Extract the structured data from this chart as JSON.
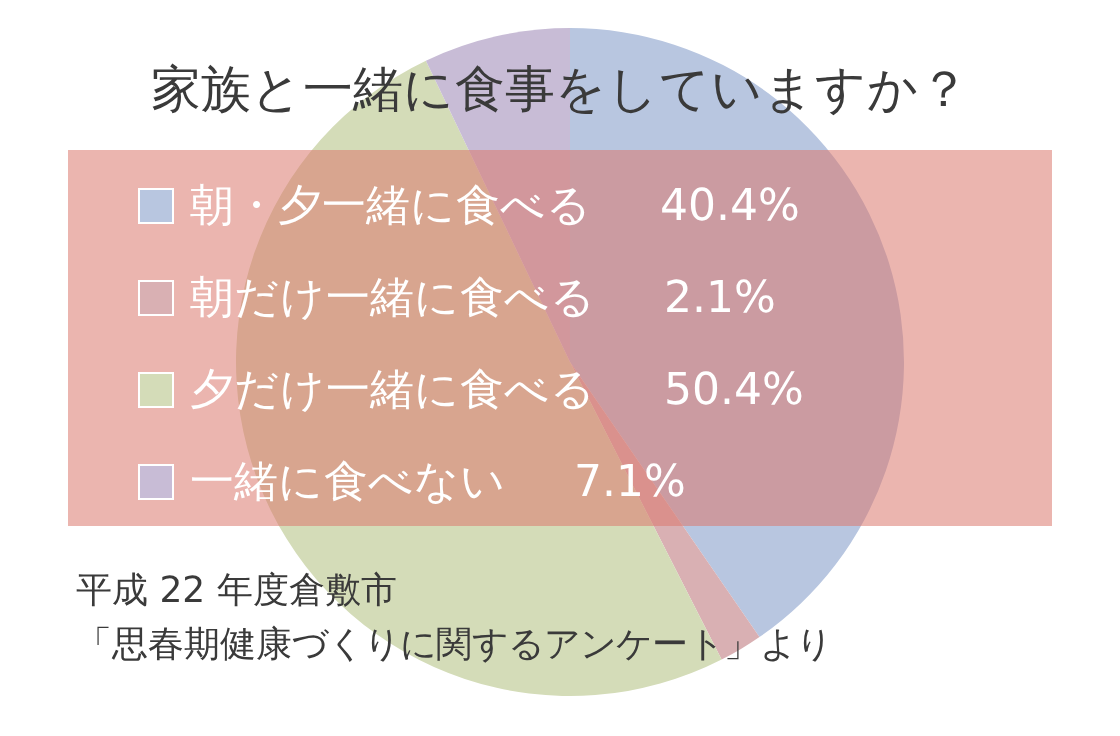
{
  "chart_data": {
    "type": "pie",
    "title": "家族と一緒に食事をしていますか？",
    "categories": [
      "朝・夕一緒に食べる",
      "朝だけ一緒に食べる",
      "夕だけ一緒に食べる",
      "一緒に食べない"
    ],
    "values": [
      40.4,
      2.1,
      50.4,
      7.1
    ],
    "value_labels": [
      "40.4%",
      "2.1%",
      "50.4%",
      "7.1%"
    ],
    "legend": "left",
    "colors": [
      "#b8c6e0",
      "#d9b0b3",
      "#d4dcb8",
      "#c8bcd6"
    ],
    "annotations": [
      "平成 22 年度倉敷市",
      "「思春期健康づくりに関するアンケート」より"
    ]
  }
}
